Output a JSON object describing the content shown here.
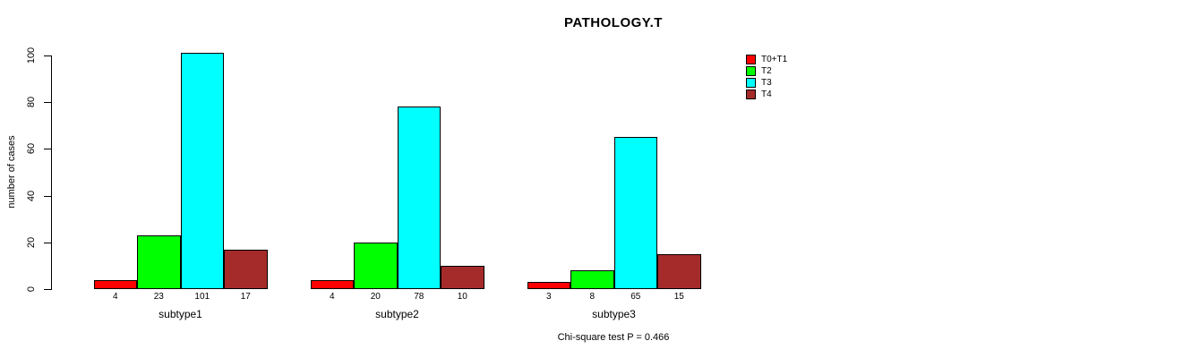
{
  "chart_data": {
    "type": "bar",
    "title": "PATHOLOGY.T",
    "ylabel": "number of cases",
    "xlabel": "",
    "ylim": [
      0,
      100
    ],
    "yticks": [
      0,
      20,
      40,
      60,
      80,
      100
    ],
    "categories": [
      "subtype1",
      "subtype2",
      "subtype3"
    ],
    "series": [
      {
        "name": "T0+T1",
        "color": "#FF0000",
        "values": [
          4,
          4,
          3
        ]
      },
      {
        "name": "T2",
        "color": "#00FF00",
        "values": [
          23,
          20,
          8
        ]
      },
      {
        "name": "T3",
        "color": "#00FFFF",
        "values": [
          101,
          78,
          65
        ]
      },
      {
        "name": "T4",
        "color": "#A52A2A",
        "values": [
          17,
          10,
          15
        ]
      }
    ],
    "value_labels_shown": true,
    "legend_position": "right",
    "grid": false,
    "footnote": "Chi-square test P = 0.466"
  }
}
